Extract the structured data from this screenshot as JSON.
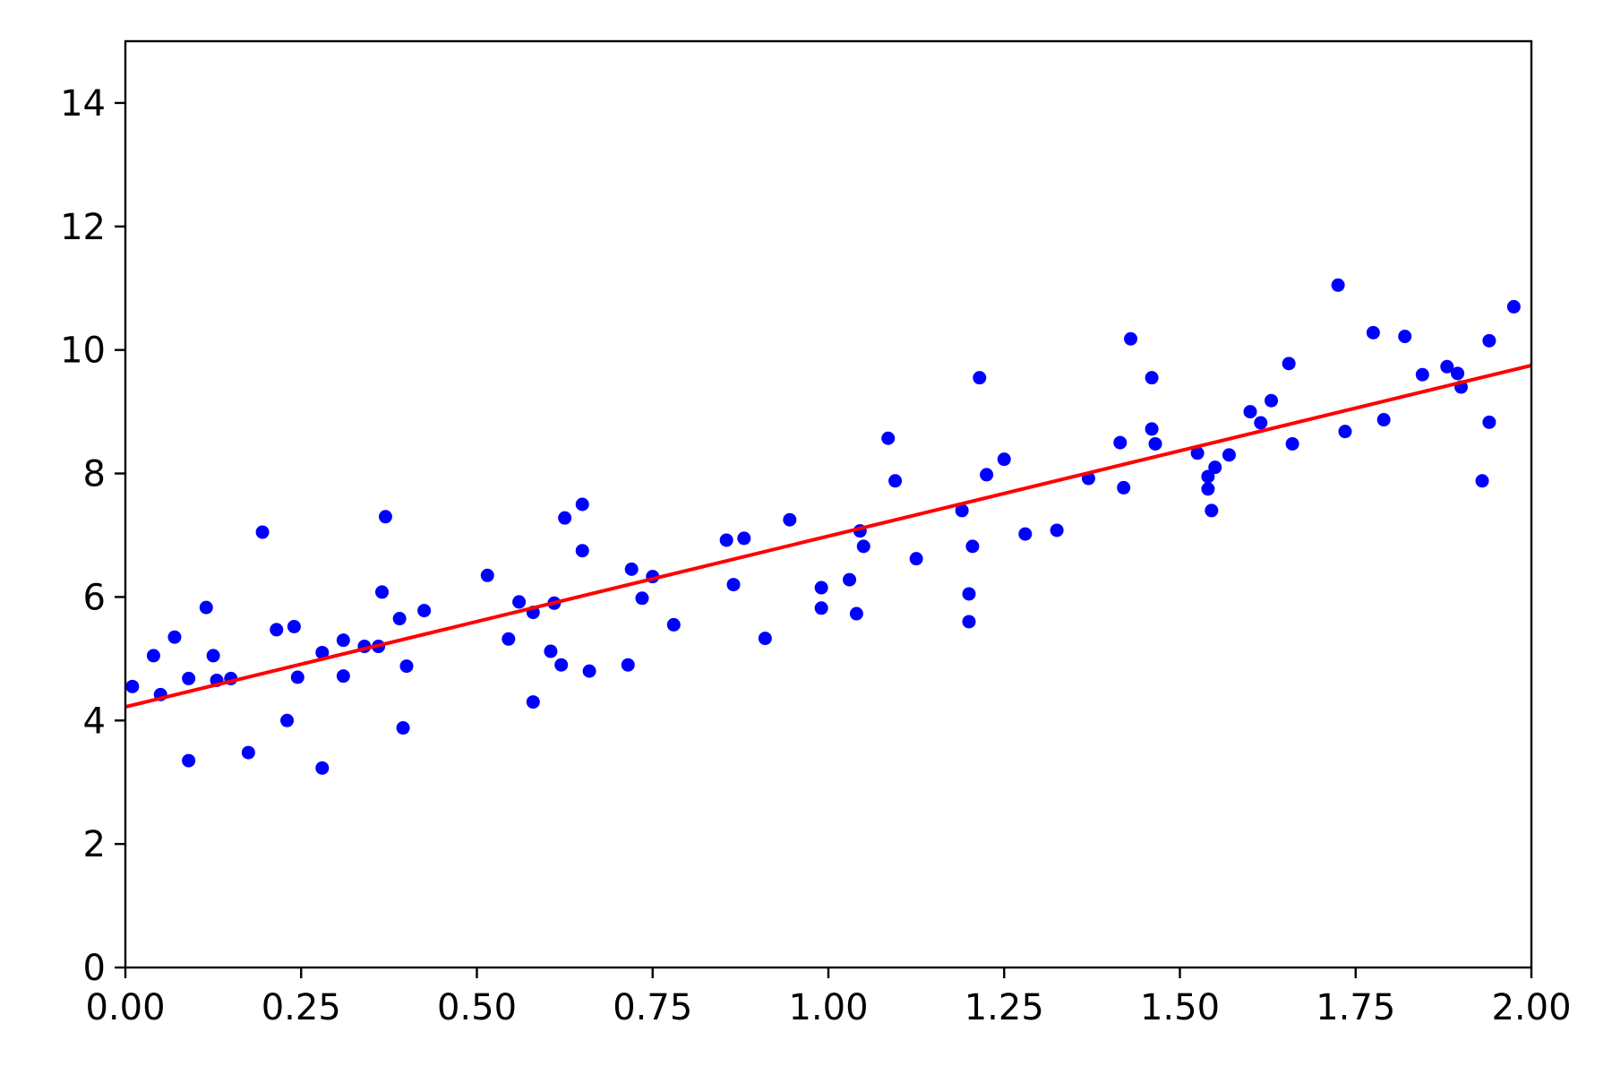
{
  "chart_data": {
    "type": "scatter",
    "title": "",
    "xlabel": "",
    "ylabel": "",
    "xlim": [
      0,
      2
    ],
    "ylim": [
      0,
      15
    ],
    "x_ticks": [
      0,
      0.25,
      0.5,
      0.75,
      1.0,
      1.25,
      1.5,
      1.75,
      2.0
    ],
    "x_tick_labels": [
      "0.00",
      "0.25",
      "0.50",
      "0.75",
      "1.00",
      "1.25",
      "1.50",
      "1.75",
      "2.00"
    ],
    "y_ticks": [
      0,
      2,
      4,
      6,
      8,
      10,
      12,
      14
    ],
    "y_tick_labels": [
      "0",
      "2",
      "4",
      "6",
      "8",
      "10",
      "12",
      "14"
    ],
    "grid": false,
    "colors": {
      "points": "#0000ff",
      "line": "#ff0000",
      "axes": "#000000"
    },
    "line": {
      "x": [
        0,
        2
      ],
      "y": [
        4.22,
        9.75
      ]
    },
    "points": {
      "x": [
        0.01,
        0.04,
        0.05,
        0.07,
        0.09,
        0.09,
        0.115,
        0.125,
        0.13,
        0.15,
        0.175,
        0.195,
        0.215,
        0.23,
        0.24,
        0.245,
        0.28,
        0.28,
        0.31,
        0.31,
        0.34,
        0.36,
        0.365,
        0.37,
        0.39,
        0.395,
        0.4,
        0.425,
        0.515,
        0.545,
        0.56,
        0.58,
        0.58,
        0.605,
        0.61,
        0.62,
        0.625,
        0.65,
        0.65,
        0.66,
        0.715,
        0.72,
        0.735,
        0.75,
        0.78,
        0.855,
        0.865,
        0.88,
        0.91,
        0.945,
        0.99,
        0.99,
        1.03,
        1.04,
        1.045,
        1.05,
        1.085,
        1.095,
        1.125,
        1.19,
        1.2,
        1.2,
        1.205,
        1.215,
        1.225,
        1.25,
        1.28,
        1.325,
        1.37,
        1.415,
        1.42,
        1.43,
        1.46,
        1.46,
        1.465,
        1.525,
        1.54,
        1.54,
        1.545,
        1.55,
        1.57,
        1.6,
        1.615,
        1.63,
        1.655,
        1.66,
        1.725,
        1.735,
        1.775,
        1.79,
        1.82,
        1.845,
        1.88,
        1.895,
        1.9,
        1.93,
        1.94,
        1.94,
        1.975
      ],
      "y": [
        4.55,
        5.05,
        4.42,
        5.35,
        3.35,
        4.68,
        5.83,
        5.05,
        4.65,
        4.68,
        3.48,
        7.05,
        5.47,
        4.0,
        5.52,
        4.7,
        5.1,
        3.23,
        5.3,
        4.72,
        5.2,
        5.2,
        6.08,
        7.3,
        5.65,
        3.88,
        4.88,
        5.78,
        6.35,
        5.32,
        5.92,
        4.3,
        5.75,
        5.12,
        5.9,
        4.9,
        7.28,
        6.75,
        7.5,
        4.8,
        4.9,
        6.45,
        5.98,
        6.33,
        5.55,
        6.92,
        6.2,
        6.95,
        5.33,
        7.25,
        6.15,
        5.82,
        6.28,
        5.73,
        7.07,
        6.82,
        8.57,
        7.88,
        6.62,
        7.4,
        5.6,
        6.05,
        6.82,
        9.55,
        7.98,
        8.23,
        7.02,
        7.08,
        7.92,
        8.5,
        7.77,
        10.18,
        8.72,
        9.55,
        8.48,
        8.33,
        7.75,
        7.95,
        7.4,
        8.1,
        8.3,
        9.0,
        8.82,
        9.18,
        9.78,
        8.48,
        11.05,
        8.68,
        10.28,
        8.87,
        10.22,
        9.6,
        9.73,
        9.62,
        9.4,
        7.88,
        10.15,
        8.83,
        10.7
      ]
    }
  }
}
